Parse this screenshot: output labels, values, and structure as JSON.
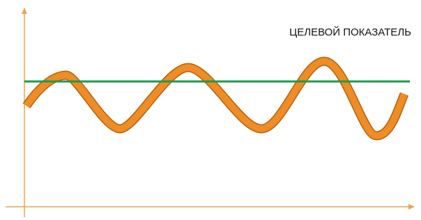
{
  "label": "ЦЕЛЕВОЙ ПОКАЗАТЕЛЬ"
}
